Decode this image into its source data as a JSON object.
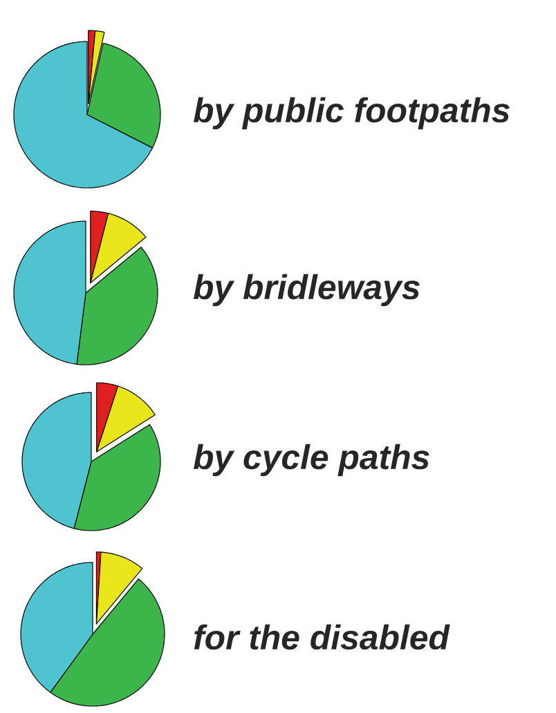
{
  "chart_data": [
    {
      "type": "pie",
      "title": "by public footpaths",
      "categories": [
        null,
        null,
        null,
        null
      ],
      "values": [
        1.5,
        2,
        29,
        67.5
      ],
      "colors": [
        "#e02020",
        "#e8e51a",
        "#3cb54a",
        "#4fc3cf"
      ]
    },
    {
      "type": "pie",
      "title": "by bridleways",
      "categories": [
        null,
        null,
        null,
        null
      ],
      "values": [
        4,
        10,
        38,
        48
      ],
      "colors": [
        "#e02020",
        "#e8e51a",
        "#3cb54a",
        "#4fc3cf"
      ]
    },
    {
      "type": "pie",
      "title": "by cycle paths",
      "categories": [
        null,
        null,
        null,
        null
      ],
      "values": [
        5,
        11,
        38,
        46
      ],
      "colors": [
        "#e02020",
        "#e8e51a",
        "#3cb54a",
        "#4fc3cf"
      ]
    },
    {
      "type": "pie",
      "title": "for the disabled",
      "categories": [
        null,
        null,
        null,
        null
      ],
      "values": [
        1,
        10,
        49,
        40
      ],
      "colors": [
        "#e02020",
        "#e8e51a",
        "#3cb54a",
        "#4fc3cf"
      ]
    }
  ]
}
